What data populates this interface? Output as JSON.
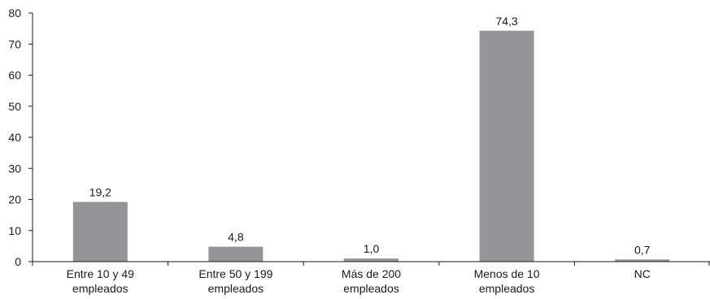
{
  "chart_data": {
    "type": "bar",
    "title": "",
    "xlabel": "",
    "ylabel": "",
    "categories": [
      [
        "Entre 10 y 49",
        "empleados"
      ],
      [
        "Entre 50 y 199",
        "empleados"
      ],
      [
        "Más de 200",
        "empleados"
      ],
      [
        "Menos de 10",
        "empleados"
      ],
      [
        "NC"
      ]
    ],
    "values": [
      19.2,
      4.8,
      1.0,
      74.3,
      0.7
    ],
    "data_labels": [
      "19,2",
      "4,8",
      "1,0",
      "74,3",
      "0,7"
    ],
    "ylim": [
      0,
      80
    ],
    "yticks": [
      0,
      10,
      20,
      30,
      40,
      50,
      60,
      70,
      80
    ],
    "grid": false,
    "legend": "none",
    "bar_color": "#939598",
    "axis_color": "#1a1a1a"
  }
}
